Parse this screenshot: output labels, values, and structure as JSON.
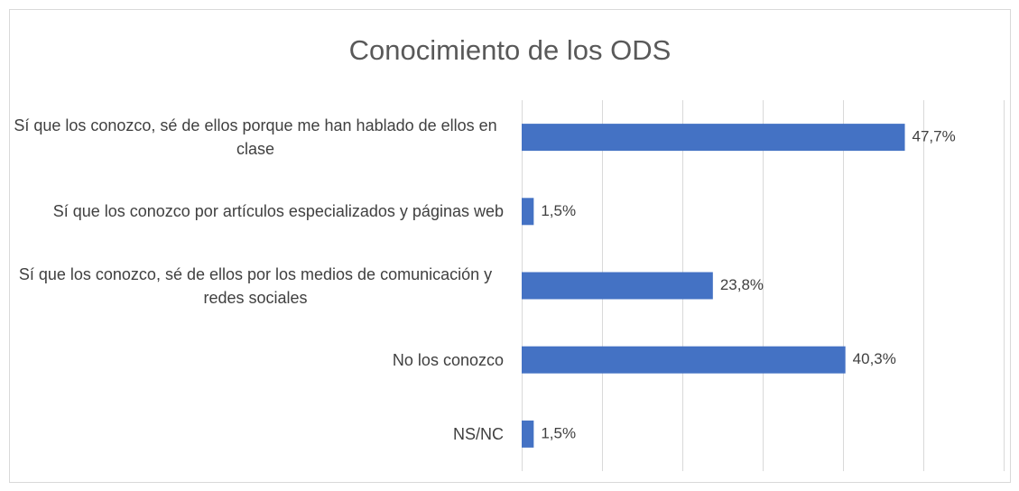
{
  "chart_data": {
    "type": "bar",
    "orientation": "horizontal",
    "title": "Conocimiento de los ODS",
    "categories": [
      "Sí que los conozco, sé de ellos porque me han hablado de ellos en clase",
      "Sí que los conozco por artículos especializados y páginas web",
      "Sí que los conozco, sé de ellos por los medios de comunicación y redes sociales",
      "No los conozco",
      "NS/NC"
    ],
    "values": [
      47.7,
      1.5,
      23.8,
      40.3,
      1.5
    ],
    "value_labels": [
      "47,7%",
      "1,5%",
      "23,8%",
      "40,3%",
      "1,5%"
    ],
    "color": "#4472c4",
    "xlim": [
      0,
      60
    ],
    "xticks": [
      0,
      10,
      20,
      30,
      40,
      50,
      60
    ],
    "grid": true
  }
}
